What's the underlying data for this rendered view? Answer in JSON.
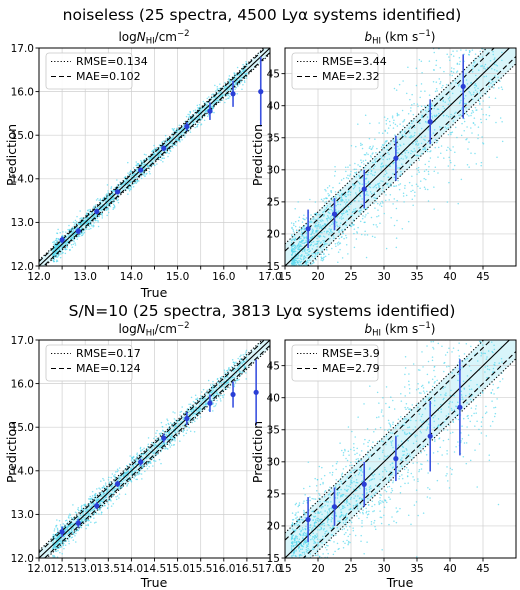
{
  "row_titles": [
    "noiseless (25 spectra, 4500 Lyα systems identified)",
    "S/N=10 (25 spectra, 3813 Lyα systems identified)"
  ],
  "colors": {
    "scatter": "#5ad8ee",
    "points": "#2a3fd6",
    "errorbar": "#3a52e0",
    "band": "#d8f5fa",
    "grid": "#cfcfcf"
  },
  "chart_data": [
    {
      "type": "scatter",
      "title": "logN_HI/cm^-2",
      "xlabel": "True",
      "ylabel": "Prediction",
      "xlim": [
        12.0,
        17.0
      ],
      "ylim": [
        12.0,
        17.0
      ],
      "xticks": [
        12.0,
        12.5,
        13.0,
        13.5,
        14.0,
        14.5,
        15.0,
        15.5,
        16.0,
        16.5,
        17.0
      ],
      "xtick_labels": [
        "12.0",
        "",
        "13.0",
        "",
        "14.0",
        "",
        "15.0",
        "",
        "16.0",
        "",
        "17.0"
      ],
      "yticks": [
        12.0,
        13.0,
        14.0,
        15.0,
        16.0,
        17.0
      ],
      "ytick_labels": [
        "12.0",
        "13.0",
        "14.0",
        "15.0",
        "16.0",
        "17.0"
      ],
      "grid": true,
      "legend": {
        "placement": "top-left",
        "entries": [
          "RMSE=0.134",
          "MAE=0.102"
        ]
      },
      "rmse": 0.134,
      "mae": 0.102,
      "binned": [
        {
          "x": 12.5,
          "y": 12.6,
          "err": 0.08
        },
        {
          "x": 12.85,
          "y": 12.8,
          "err": 0.07
        },
        {
          "x": 13.25,
          "y": 13.25,
          "err": 0.06
        },
        {
          "x": 13.7,
          "y": 13.7,
          "err": 0.05
        },
        {
          "x": 14.2,
          "y": 14.2,
          "err": 0.05
        },
        {
          "x": 14.7,
          "y": 14.7,
          "err": 0.06
        },
        {
          "x": 15.2,
          "y": 15.2,
          "err": 0.1
        },
        {
          "x": 15.7,
          "y": 15.55,
          "err": 0.2
        },
        {
          "x": 16.2,
          "y": 15.95,
          "err": 0.3
        },
        {
          "x": 16.8,
          "y": 16.0,
          "err": 0.8
        }
      ],
      "scatter": {
        "count": 1700,
        "seed": 11,
        "kind": "logN",
        "spread": 0.12
      }
    },
    {
      "type": "scatter",
      "title": "b_HI (km s^-1)",
      "xlabel": "",
      "ylabel": "Prediction",
      "xlim": [
        15,
        50
      ],
      "ylim": [
        15,
        49
      ],
      "xticks": [
        15,
        20,
        25,
        30,
        35,
        40,
        45
      ],
      "xtick_labels": [
        "15",
        "20",
        "25",
        "30",
        "35",
        "40",
        "45"
      ],
      "yticks": [
        15,
        20,
        25,
        30,
        35,
        40,
        45
      ],
      "ytick_labels": [
        "15",
        "20",
        "25",
        "30",
        "35",
        "40",
        "45"
      ],
      "grid": true,
      "legend": {
        "placement": "top-left",
        "entries": [
          "RMSE=3.44",
          "MAE=2.32"
        ]
      },
      "rmse": 3.44,
      "mae": 2.32,
      "binned": [
        {
          "x": 18.5,
          "y": 20.8,
          "err": 3.0
        },
        {
          "x": 22.5,
          "y": 23.1,
          "err": 2.5
        },
        {
          "x": 27.0,
          "y": 27.0,
          "err": 3.0
        },
        {
          "x": 31.8,
          "y": 31.8,
          "err": 3.5
        },
        {
          "x": 37.0,
          "y": 37.5,
          "err": 3.5
        },
        {
          "x": 42.0,
          "y": 43.0,
          "err": 5.0
        }
      ],
      "scatter": {
        "count": 1700,
        "seed": 23,
        "kind": "b",
        "spread": 3.4
      }
    },
    {
      "type": "scatter",
      "title": "logN_HI/cm^-2",
      "xlabel": "True",
      "ylabel": "Prediction",
      "xlim": [
        12.0,
        17.0
      ],
      "ylim": [
        12.0,
        17.0
      ],
      "xticks": [
        12.0,
        12.5,
        13.0,
        13.5,
        14.0,
        14.5,
        15.0,
        15.5,
        16.0,
        16.5,
        17.0
      ],
      "xtick_labels": [
        "12.0",
        "12.5",
        "13.0",
        "13.5",
        "14.0",
        "14.5",
        "15.0",
        "15.5",
        "16.0",
        "16.5",
        "17.0"
      ],
      "yticks": [
        12.0,
        13.0,
        14.0,
        15.0,
        16.0,
        17.0
      ],
      "ytick_labels": [
        "12.0",
        "13.0",
        "14.0",
        "15.0",
        "16.0",
        "17.0"
      ],
      "grid": true,
      "legend": {
        "placement": "top-left",
        "entries": [
          "RMSE=0.17",
          "MAE=0.124"
        ]
      },
      "rmse": 0.17,
      "mae": 0.124,
      "binned": [
        {
          "x": 12.5,
          "y": 12.6,
          "err": 0.12
        },
        {
          "x": 12.85,
          "y": 12.8,
          "err": 0.1
        },
        {
          "x": 13.25,
          "y": 13.2,
          "err": 0.08
        },
        {
          "x": 13.7,
          "y": 13.7,
          "err": 0.07
        },
        {
          "x": 14.2,
          "y": 14.2,
          "err": 0.08
        },
        {
          "x": 14.7,
          "y": 14.75,
          "err": 0.1
        },
        {
          "x": 15.2,
          "y": 15.2,
          "err": 0.15
        },
        {
          "x": 15.7,
          "y": 15.55,
          "err": 0.2
        },
        {
          "x": 16.2,
          "y": 15.75,
          "err": 0.3
        },
        {
          "x": 16.7,
          "y": 15.8,
          "err": 0.75
        }
      ],
      "scatter": {
        "count": 1500,
        "seed": 37,
        "kind": "logN",
        "spread": 0.16
      }
    },
    {
      "type": "scatter",
      "title": "b_HI (km s^-1)",
      "xlabel": "True",
      "ylabel": "Prediction",
      "xlim": [
        15,
        50
      ],
      "ylim": [
        15,
        49
      ],
      "xticks": [
        15,
        20,
        25,
        30,
        35,
        40,
        45
      ],
      "xtick_labels": [
        "15",
        "20",
        "25",
        "30",
        "35",
        "40",
        "45"
      ],
      "yticks": [
        15,
        20,
        25,
        30,
        35,
        40,
        45
      ],
      "ytick_labels": [
        "15",
        "20",
        "25",
        "30",
        "35",
        "40",
        "45"
      ],
      "grid": true,
      "legend": {
        "placement": "top-left",
        "entries": [
          "RMSE=3.9",
          "MAE=2.79"
        ]
      },
      "rmse": 3.9,
      "mae": 2.79,
      "binned": [
        {
          "x": 18.5,
          "y": 21.0,
          "err": 3.5
        },
        {
          "x": 22.5,
          "y": 23.0,
          "err": 3.0
        },
        {
          "x": 27.0,
          "y": 26.5,
          "err": 3.5
        },
        {
          "x": 31.8,
          "y": 30.5,
          "err": 3.5
        },
        {
          "x": 37.0,
          "y": 34.0,
          "err": 5.5
        },
        {
          "x": 41.5,
          "y": 38.5,
          "err": 7.5
        }
      ],
      "scatter": {
        "count": 1500,
        "seed": 51,
        "kind": "b",
        "spread": 3.9
      }
    }
  ]
}
